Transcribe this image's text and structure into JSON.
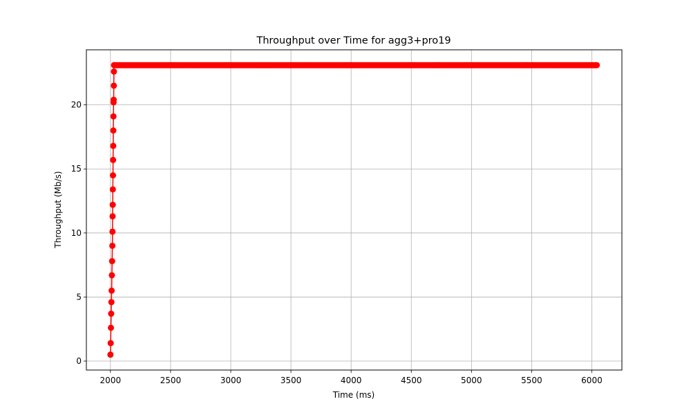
{
  "chart_data": {
    "type": "line",
    "title": "Throughput over Time for agg3+pro19",
    "xlabel": "Time (ms)",
    "ylabel": "Throughput (Mb/s)",
    "xlim": [
      1800,
      6250
    ],
    "ylim": [
      -0.7,
      24.3
    ],
    "xticks": [
      2000,
      2500,
      3000,
      3500,
      4000,
      4500,
      5000,
      5500,
      6000
    ],
    "yticks": [
      0,
      5,
      10,
      15,
      20
    ],
    "grid": true,
    "legend": "none",
    "series": [
      {
        "color": "#ff0000",
        "marker": "circle",
        "ramp": {
          "x": [
            2000,
            2002,
            2004,
            2006,
            2008,
            2010,
            2012,
            2014,
            2016,
            2017,
            2018,
            2019,
            2020,
            2021,
            2022,
            2023,
            2024,
            2025,
            2026,
            2027,
            2028,
            2029,
            2030,
            2031
          ],
          "y": [
            0.5,
            1.4,
            2.6,
            3.7,
            4.6,
            5.5,
            6.7,
            7.8,
            9.0,
            10.1,
            11.3,
            12.2,
            13.4,
            14.5,
            15.7,
            16.8,
            18.0,
            19.1,
            20.2,
            20.4,
            21.5,
            22.6,
            23.1,
            23.1
          ]
        },
        "plateau": {
          "y": 23.1,
          "x_start": 2031,
          "x_end": 6050,
          "x_step": 10
        }
      }
    ]
  }
}
